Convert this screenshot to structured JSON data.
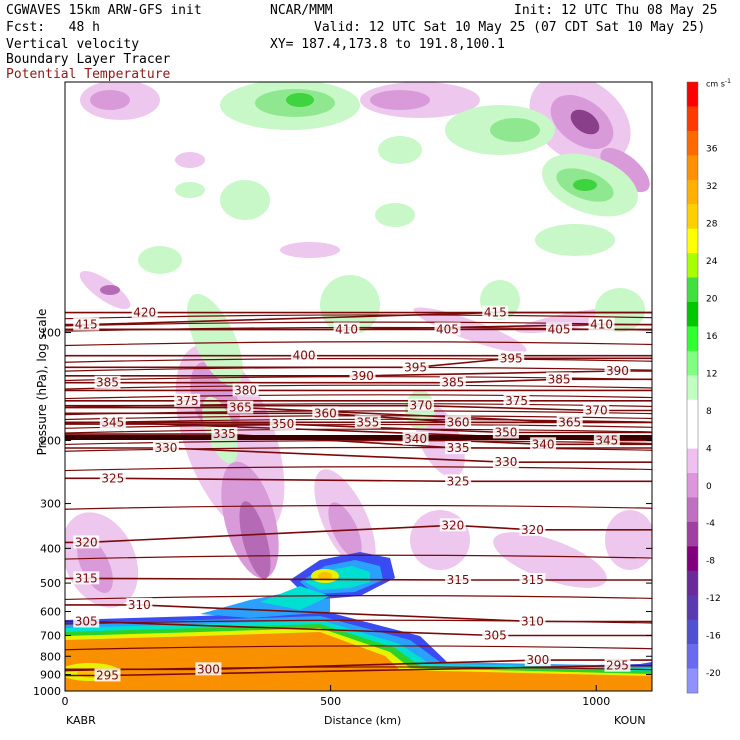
{
  "header": {
    "model": "CGWAVES 15km ARW-GFS init",
    "org": "NCAR/MMM",
    "init": "Init: 12 UTC Thu 08 May 25",
    "fcst": "Fcst:   48 h",
    "valid": "Valid: 12 UTC Sat 10 May 25 (07 CDT Sat 10 May 25)",
    "field1": "Vertical velocity",
    "field2": "Boundary Layer Tracer",
    "field3": "Potential Temperature",
    "xy": "XY= 187.4,173.8 to 191.8,100.1"
  },
  "colors": {
    "theta": "#7a0a0a",
    "field3_text": "#8b1a1a",
    "positive_w": [
      "#c8f7c8",
      "#8fe88f",
      "#3fd43f"
    ],
    "negative_w": [
      "#eec7ee",
      "#d99ad9",
      "#b56ab5",
      "#8a3f8a"
    ],
    "tracer": [
      "#3a4bf0",
      "#2aa0ff",
      "#00e0d0",
      "#2ad22a",
      "#e8f200",
      "#f8c000",
      "#f89000"
    ]
  },
  "chart_data": {
    "type": "heatmap",
    "title": "",
    "xlabel": "Distance (km)",
    "ylabel": "Pressure (hPa), log scale",
    "x_ticks": [
      0,
      500,
      1000
    ],
    "x_end_labels": [
      "KABR",
      "KOUN"
    ],
    "xlim": [
      0,
      1105
    ],
    "y_scale": "log",
    "y_ticks": [
      100,
      200,
      300,
      400,
      500,
      600,
      700,
      800,
      900,
      1000
    ],
    "ylim": [
      1000,
      20
    ],
    "colorbar": {
      "unit": "cm s",
      "unit_exp": "-1",
      "levels": [
        36,
        32,
        28,
        24,
        20,
        16,
        12,
        8,
        4,
        0,
        -4,
        -8,
        -12,
        -16,
        -20
      ],
      "colors": [
        "#ff0000",
        "#ff3a00",
        "#ff6a00",
        "#ff9000",
        "#ffb000",
        "#ffd000",
        "#ffff00",
        "#a8ff00",
        "#40e040",
        "#00c800",
        "#30ff30",
        "#80ff80",
        "#c0ffc0",
        "#ffffff",
        "#ffffff",
        "#f0c0f0",
        "#dc96dc",
        "#c070c0",
        "#a040a0",
        "#800080",
        "#6a2a9a",
        "#5a3ab0",
        "#5050d0",
        "#6a6af0",
        "#9090ff"
      ]
    },
    "theta_labels": [
      {
        "value": 415,
        "x": 40,
        "p": 95
      },
      {
        "value": 420,
        "x": 150,
        "p": 88
      },
      {
        "value": 410,
        "x": 530,
        "p": 98
      },
      {
        "value": 405,
        "x": 720,
        "p": 98
      },
      {
        "value": 415,
        "x": 810,
        "p": 88
      },
      {
        "value": 405,
        "x": 930,
        "p": 98
      },
      {
        "value": 410,
        "x": 1010,
        "p": 95
      },
      {
        "value": 400,
        "x": 450,
        "p": 116
      },
      {
        "value": 395,
        "x": 660,
        "p": 125
      },
      {
        "value": 395,
        "x": 840,
        "p": 118
      },
      {
        "value": 390,
        "x": 560,
        "p": 132
      },
      {
        "value": 390,
        "x": 1040,
        "p": 128
      },
      {
        "value": 385,
        "x": 80,
        "p": 138
      },
      {
        "value": 385,
        "x": 730,
        "p": 138
      },
      {
        "value": 385,
        "x": 930,
        "p": 135
      },
      {
        "value": 380,
        "x": 340,
        "p": 145
      },
      {
        "value": 375,
        "x": 230,
        "p": 155
      },
      {
        "value": 375,
        "x": 850,
        "p": 155
      },
      {
        "value": 370,
        "x": 670,
        "p": 160
      },
      {
        "value": 370,
        "x": 1000,
        "p": 165
      },
      {
        "value": 365,
        "x": 330,
        "p": 162
      },
      {
        "value": 365,
        "x": 950,
        "p": 178
      },
      {
        "value": 360,
        "x": 490,
        "p": 168
      },
      {
        "value": 360,
        "x": 740,
        "p": 178
      },
      {
        "value": 355,
        "x": 570,
        "p": 178
      },
      {
        "value": 350,
        "x": 410,
        "p": 180
      },
      {
        "value": 350,
        "x": 830,
        "p": 190
      },
      {
        "value": 345,
        "x": 90,
        "p": 178
      },
      {
        "value": 345,
        "x": 1020,
        "p": 200
      },
      {
        "value": 340,
        "x": 660,
        "p": 198
      },
      {
        "value": 340,
        "x": 900,
        "p": 205
      },
      {
        "value": 335,
        "x": 300,
        "p": 192
      },
      {
        "value": 335,
        "x": 740,
        "p": 210
      },
      {
        "value": 330,
        "x": 190,
        "p": 210
      },
      {
        "value": 330,
        "x": 830,
        "p": 230
      },
      {
        "value": 325,
        "x": 90,
        "p": 255
      },
      {
        "value": 325,
        "x": 740,
        "p": 260
      },
      {
        "value": 320,
        "x": 40,
        "p": 385
      },
      {
        "value": 320,
        "x": 730,
        "p": 345
      },
      {
        "value": 320,
        "x": 880,
        "p": 355
      },
      {
        "value": 315,
        "x": 40,
        "p": 485
      },
      {
        "value": 315,
        "x": 740,
        "p": 490
      },
      {
        "value": 315,
        "x": 880,
        "p": 490
      },
      {
        "value": 310,
        "x": 140,
        "p": 575
      },
      {
        "value": 310,
        "x": 880,
        "p": 640
      },
      {
        "value": 305,
        "x": 40,
        "p": 640
      },
      {
        "value": 305,
        "x": 810,
        "p": 700
      },
      {
        "value": 300,
        "x": 270,
        "p": 870
      },
      {
        "value": 300,
        "x": 890,
        "p": 820
      },
      {
        "value": 295,
        "x": 80,
        "p": 905
      },
      {
        "value": 295,
        "x": 1040,
        "p": 850
      }
    ]
  }
}
